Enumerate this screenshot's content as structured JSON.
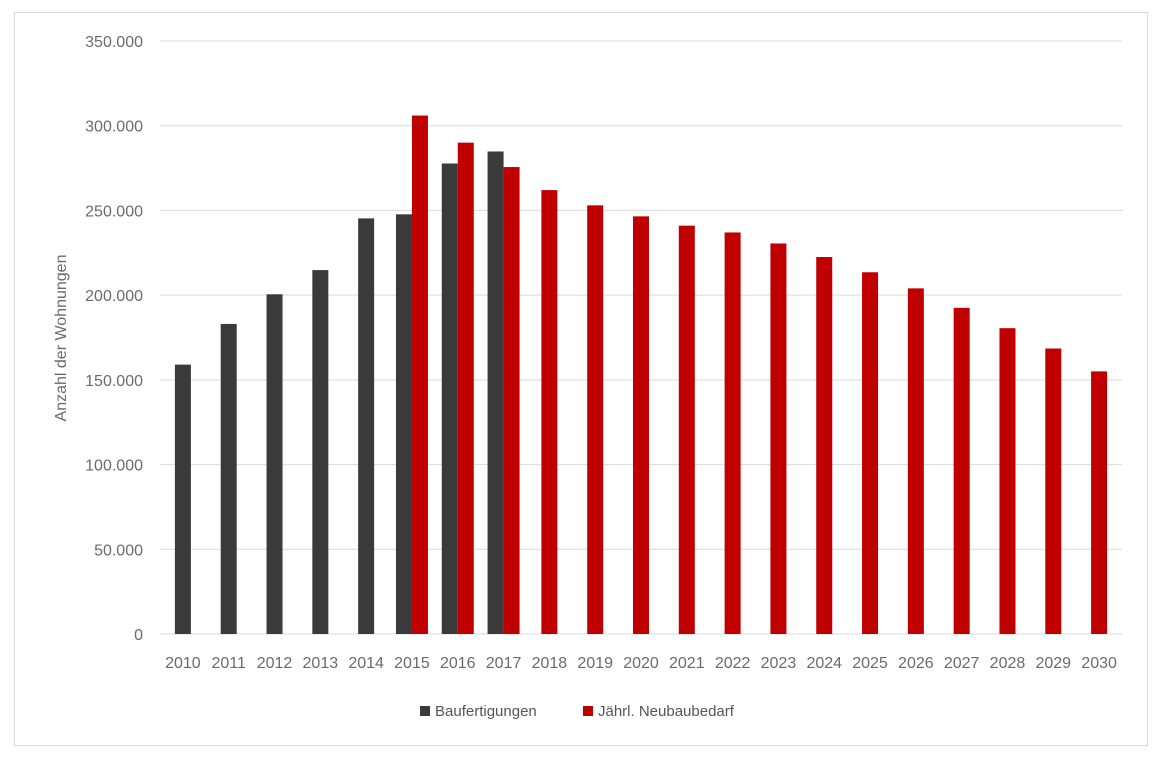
{
  "chart_data": {
    "type": "bar",
    "title": "",
    "xlabel": "",
    "ylabel": "Anzahl der Wohnungen",
    "ylim": [
      0,
      350000
    ],
    "yticks": [
      0,
      50000,
      100000,
      150000,
      200000,
      250000,
      300000,
      350000
    ],
    "ytick_labels": [
      "0",
      "50.000",
      "100.000",
      "150.000",
      "200.000",
      "250.000",
      "300.000",
      "350.000"
    ],
    "grid": true,
    "legend_position": "bottom",
    "categories": [
      "2010",
      "2011",
      "2012",
      "2013",
      "2014",
      "2015",
      "2016",
      "2017",
      "2018",
      "2019",
      "2020",
      "2021",
      "2022",
      "2023",
      "2024",
      "2025",
      "2026",
      "2027",
      "2028",
      "2029",
      "2030"
    ],
    "series": [
      {
        "name": "Baufertigungen",
        "color": "#3a3a3a",
        "values": [
          159000,
          183000,
          200500,
          214800,
          245300,
          247700,
          277700,
          284800,
          null,
          null,
          null,
          null,
          null,
          null,
          null,
          null,
          null,
          null,
          null,
          null,
          null
        ]
      },
      {
        "name": "Jährl. Neubaubedarf",
        "color": "#c00000",
        "values": [
          null,
          null,
          null,
          null,
          null,
          306000,
          290000,
          275600,
          262000,
          253000,
          246500,
          241000,
          237000,
          230500,
          222500,
          213500,
          204000,
          192500,
          180500,
          168500,
          155000
        ]
      }
    ]
  }
}
